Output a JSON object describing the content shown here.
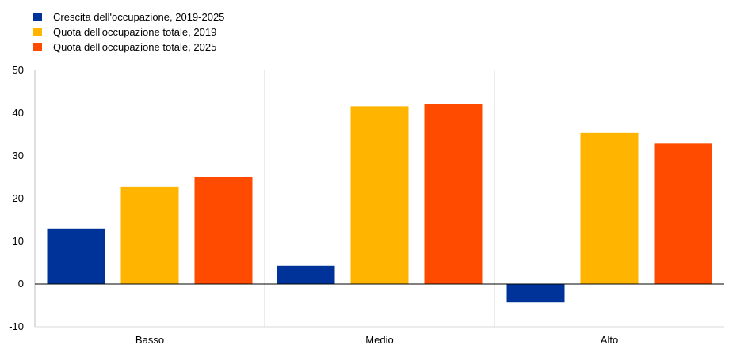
{
  "chart_data": {
    "type": "bar",
    "categories": [
      "Basso",
      "Medio",
      "Alto"
    ],
    "series": [
      {
        "name": "Crescita dell'occupazione, 2019-2025",
        "color": "#003399",
        "values": [
          13.0,
          4.3,
          -4.3
        ]
      },
      {
        "name": "Quota dell'occupazione totale, 2019",
        "color": "#FFB400",
        "values": [
          22.8,
          41.6,
          35.4
        ]
      },
      {
        "name": "Quota dell'occupazione totale, 2025",
        "color": "#FF4B00",
        "values": [
          25.0,
          42.1,
          32.9
        ]
      }
    ],
    "ylim": [
      -10,
      50
    ],
    "yticks": [
      -10,
      0,
      10,
      20,
      30,
      40,
      50
    ],
    "ytick_labels": [
      "-10",
      "0",
      "10",
      "20",
      "30",
      "40",
      "50"
    ],
    "grid": "vertical separators between categories",
    "legend": "top-left"
  }
}
